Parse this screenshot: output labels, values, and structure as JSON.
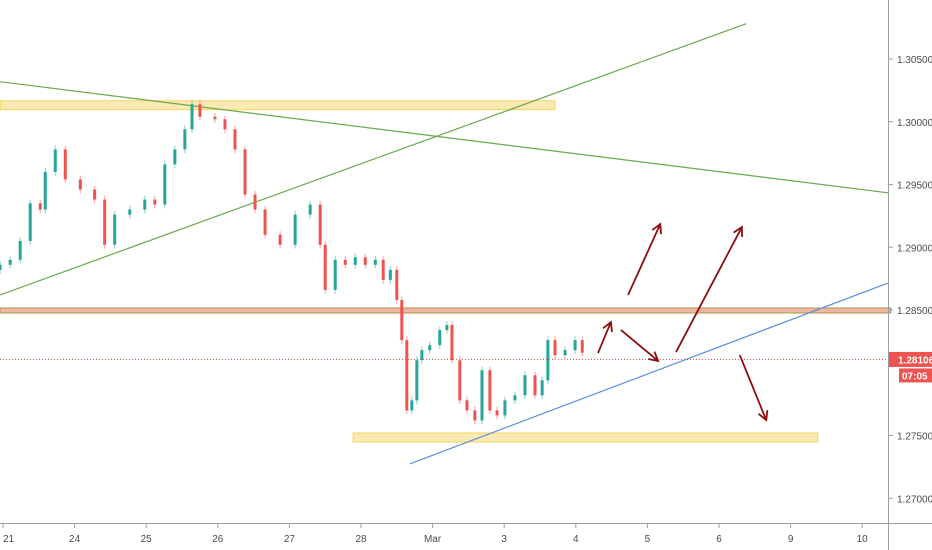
{
  "chart_data": {
    "type": "candlestick",
    "ylim": [
      1.268,
      1.309
    ],
    "grid": false,
    "y_ticks": [
      "1.30500",
      "1.30000",
      "1.29500",
      "1.29000",
      "1.28500",
      "1.27500",
      "1.27000"
    ],
    "y_tick_values": [
      1.305,
      1.3,
      1.295,
      1.29,
      1.285,
      1.275,
      1.27
    ],
    "x_ticks": [
      "21",
      "24",
      "25",
      "26",
      "27",
      "28",
      "Mar",
      "3",
      "4",
      "5",
      "6",
      "9",
      "10"
    ],
    "last_price": {
      "label": "1.28106",
      "value": 1.28106,
      "countdown": "07:05",
      "color": "#ef5350"
    },
    "colors": {
      "up": "#26a69a",
      "down": "#ef5350",
      "trend_green": "#6aaa4a",
      "trend_blue": "#5b8fe0",
      "arrow": "#8b0f0f",
      "zone_yellow": "#fbe9b4",
      "zone_orange": "#f4b4a4"
    },
    "candles": [
      [
        -0.04,
        1.2886
      ],
      [
        0.1,
        1.289
      ],
      [
        0.24,
        1.2905
      ],
      [
        0.38,
        1.2935
      ],
      [
        0.52,
        1.293
      ],
      [
        0.59,
        1.296
      ],
      [
        0.73,
        1.2978
      ],
      [
        0.87,
        1.2954
      ],
      [
        1.08,
        1.2946
      ],
      [
        1.28,
        1.2938
      ],
      [
        1.42,
        1.2902
      ],
      [
        1.56,
        1.2926
      ],
      [
        1.77,
        1.293
      ],
      [
        1.98,
        1.2938
      ],
      [
        2.12,
        1.2934
      ],
      [
        2.26,
        1.2966
      ],
      [
        2.4,
        1.2978
      ],
      [
        2.54,
        1.2994
      ],
      [
        2.64,
        1.3014
      ],
      [
        2.75,
        1.3004
      ],
      [
        2.96,
        1.3002
      ],
      [
        3.1,
        1.2994
      ],
      [
        3.24,
        1.2978
      ],
      [
        3.38,
        1.2942
      ],
      [
        3.52,
        1.293
      ],
      [
        3.66,
        1.291
      ],
      [
        3.87,
        1.2902
      ],
      [
        4.08,
        1.2926
      ],
      [
        4.29,
        1.2934
      ],
      [
        4.43,
        1.2902
      ],
      [
        4.5,
        1.2866
      ],
      [
        4.64,
        1.289
      ],
      [
        4.78,
        1.2886
      ],
      [
        4.92,
        1.2892
      ],
      [
        5.06,
        1.2886
      ],
      [
        5.2,
        1.289
      ],
      [
        5.31,
        1.2874
      ],
      [
        5.41,
        1.2882
      ],
      [
        5.5,
        1.2858
      ],
      [
        5.57,
        1.2826
      ],
      [
        5.64,
        1.277
      ],
      [
        5.71,
        1.2778
      ],
      [
        5.78,
        1.281
      ],
      [
        5.85,
        1.2818
      ],
      [
        5.96,
        1.2822
      ],
      [
        6.1,
        1.2834
      ],
      [
        6.2,
        1.2838
      ],
      [
        6.27,
        1.281
      ],
      [
        6.38,
        1.2778
      ],
      [
        6.48,
        1.277
      ],
      [
        6.59,
        1.2762
      ],
      [
        6.69,
        1.2802
      ],
      [
        6.8,
        1.277
      ],
      [
        6.9,
        1.2766
      ],
      [
        7.01,
        1.2778
      ],
      [
        7.15,
        1.2782
      ],
      [
        7.29,
        1.2798
      ],
      [
        7.43,
        1.2782
      ],
      [
        7.53,
        1.2794
      ],
      [
        7.61,
        1.2826
      ],
      [
        7.71,
        1.2814
      ],
      [
        7.85,
        1.2818
      ],
      [
        7.99,
        1.2826
      ],
      [
        8.09,
        1.2816
      ]
    ],
    "zones": [
      {
        "kind": "yellow",
        "t": [
          -0.04,
          7.71
        ],
        "price": [
          1.30096,
          1.30167
        ]
      },
      {
        "kind": "orange",
        "t": [
          -0.04,
          12.4
        ],
        "price": [
          1.28476,
          1.28516
        ]
      },
      {
        "kind": "yellow",
        "t": [
          4.89,
          11.38
        ],
        "price": [
          1.27448,
          1.2752
        ]
      }
    ],
    "trendlines": [
      {
        "kind": "green",
        "from": [
          -0.04,
          1.30319
        ],
        "to": [
          12.36,
          1.29434
        ]
      },
      {
        "kind": "green",
        "from": [
          -0.04,
          1.2862
        ],
        "to": [
          10.38,
          1.30781
        ]
      },
      {
        "kind": "blue",
        "from": [
          5.68,
          1.27273
        ],
        "to": [
          12.36,
          1.28715
        ]
      }
    ],
    "arrows": [
      {
        "from": [
          8.31,
          1.28157
        ],
        "to": [
          8.49,
          1.28404
        ]
      },
      {
        "from": [
          8.63,
          1.28341
        ],
        "to": [
          9.15,
          1.28094
        ]
      },
      {
        "from": [
          9.4,
          1.28165
        ],
        "to": [
          10.32,
          1.29161
        ]
      },
      {
        "from": [
          8.73,
          1.2862
        ],
        "to": [
          9.18,
          1.29185
        ]
      },
      {
        "from": [
          10.29,
          1.28141
        ],
        "to": [
          10.66,
          1.27623
        ]
      }
    ]
  }
}
